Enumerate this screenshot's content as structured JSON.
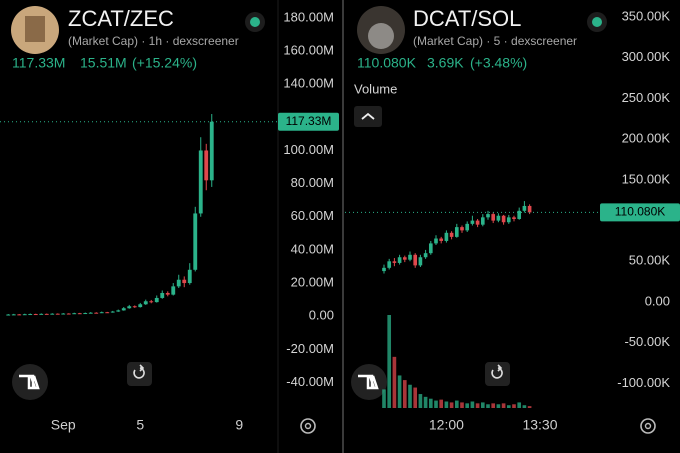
{
  "chart_data": [
    {
      "type": "candlestick",
      "title": "ZCAT/ZEC",
      "subtitle": "(Market Cap) · 1h · dexscreener",
      "stats": [
        "117.33M",
        "15.51M",
        "(+15.24%)"
      ],
      "up_color": "#2bb38a",
      "down_color": "#e0474c",
      "ylim": [
        -55.4,
        190.8
      ],
      "yticks": [
        {
          "value": 180,
          "label": "180.00M"
        },
        {
          "value": 160,
          "label": "160.00M"
        },
        {
          "value": 140,
          "label": "140.00M"
        },
        {
          "value": 100,
          "label": "100.00M"
        },
        {
          "value": 80,
          "label": "80.00M"
        },
        {
          "value": 60,
          "label": "60.00M"
        },
        {
          "value": 40,
          "label": "40.00M"
        },
        {
          "value": 20,
          "label": "20.00M"
        },
        {
          "value": 0,
          "label": "0.00"
        },
        {
          "value": -20,
          "label": "-20.00M"
        },
        {
          "value": -40,
          "label": "-40.00M"
        }
      ],
      "price_label": {
        "value": 117.33,
        "label": "117.33M"
      },
      "categories": [
        null,
        null,
        null,
        null,
        null,
        null,
        null,
        null,
        null,
        null,
        null,
        "Sep",
        null,
        null,
        null,
        null,
        null,
        null,
        null,
        null,
        null,
        null,
        null,
        null,
        null,
        "5",
        null,
        null,
        null,
        null,
        null,
        null,
        null,
        null,
        null,
        null,
        null,
        null,
        null,
        null,
        null,
        null,
        null,
        "9",
        null,
        null,
        null,
        null,
        null,
        null
      ],
      "open": [
        null,
        0.9,
        1.0,
        1.1,
        1.0,
        1.2,
        1.3,
        1.2,
        1.4,
        1.3,
        1.5,
        1.4,
        1.6,
        1.5,
        1.8,
        1.7,
        1.9,
        2.1,
        2.0,
        2.4,
        2.2,
        2.8,
        3.5,
        4.8,
        6.0,
        5.5,
        7.2,
        9.0,
        8.5,
        11.0,
        14.0,
        13.0,
        18.0,
        22.0,
        20.0,
        28.0,
        62.0,
        100.0,
        82.0,
        null,
        null,
        null,
        null,
        null,
        null,
        null,
        null,
        null,
        null,
        null
      ],
      "high": [
        null,
        1.3,
        1.4,
        1.3,
        1.5,
        1.6,
        1.5,
        1.7,
        1.6,
        1.8,
        1.7,
        1.9,
        1.8,
        2.1,
        2.0,
        2.2,
        2.5,
        2.4,
        2.8,
        2.6,
        3.2,
        4.0,
        5.5,
        6.8,
        6.5,
        8.0,
        10.0,
        9.8,
        12.5,
        15.5,
        15.0,
        20.0,
        25.0,
        24.0,
        32.0,
        66.0,
        108.0,
        104.0,
        122.0,
        null,
        null,
        null,
        null,
        null,
        null,
        null,
        null,
        null,
        null,
        null
      ],
      "low": [
        null,
        0.7,
        0.8,
        0.8,
        0.9,
        1.0,
        1.0,
        1.1,
        1.1,
        1.2,
        1.2,
        1.3,
        1.3,
        1.4,
        1.5,
        1.6,
        1.8,
        1.8,
        1.9,
        2.0,
        2.1,
        2.6,
        3.3,
        4.5,
        5.0,
        5.2,
        6.8,
        7.8,
        8.2,
        10.5,
        12.0,
        12.5,
        17.0,
        17.5,
        19.0,
        27.0,
        60.0,
        76.0,
        78.0,
        null,
        null,
        null,
        null,
        null,
        null,
        null,
        null,
        null,
        null,
        null
      ],
      "close": [
        null,
        1.0,
        1.1,
        1.0,
        1.2,
        1.3,
        1.2,
        1.4,
        1.3,
        1.5,
        1.4,
        1.6,
        1.5,
        1.8,
        1.7,
        1.9,
        2.1,
        2.0,
        2.4,
        2.2,
        2.8,
        3.5,
        4.8,
        6.0,
        5.5,
        7.2,
        9.0,
        8.5,
        11.0,
        14.0,
        13.0,
        18.0,
        22.0,
        20.0,
        28.0,
        62.0,
        100.0,
        82.0,
        117.33,
        null,
        null,
        null,
        null,
        null,
        null,
        null,
        null,
        null,
        null,
        null
      ]
    },
    {
      "type": "candlestick",
      "title": "DCAT/SOL",
      "subtitle": "(Market Cap) · 5 · dexscreener",
      "stats": [
        "110.080K",
        "3.69K",
        "(+3.48%)"
      ],
      "volume_label": "Volume",
      "up_color": "#2bb38a",
      "down_color": "#e0474c",
      "ylim": [
        -130.2,
        371
      ],
      "yticks": [
        {
          "value": 350,
          "label": "350.00K"
        },
        {
          "value": 300,
          "label": "300.00K"
        },
        {
          "value": 250,
          "label": "250.00K"
        },
        {
          "value": 200,
          "label": "200.00K"
        },
        {
          "value": 150,
          "label": "150.00K"
        },
        {
          "value": 50,
          "label": "50.00K"
        },
        {
          "value": 0,
          "label": "0.00"
        },
        {
          "value": -50,
          "label": "-50.00K"
        },
        {
          "value": -100,
          "label": "-100.00K"
        }
      ],
      "price_label": {
        "value": 110.08,
        "label": "110.080K"
      },
      "categories": [
        null,
        null,
        null,
        null,
        null,
        null,
        null,
        null,
        null,
        null,
        null,
        null,
        null,
        null,
        null,
        null,
        null,
        null,
        null,
        "12:00",
        null,
        null,
        null,
        null,
        null,
        null,
        null,
        null,
        null,
        null,
        null,
        null,
        null,
        null,
        null,
        null,
        null,
        "13:30",
        null,
        null,
        null,
        null,
        null,
        null,
        null,
        null,
        null,
        null,
        null
      ],
      "open": [
        null,
        null,
        null,
        null,
        null,
        null,
        null,
        38,
        42,
        50,
        48,
        55,
        52,
        58,
        45,
        55,
        60,
        72,
        78,
        75,
        85,
        80,
        92,
        88,
        96,
        100,
        95,
        104,
        108,
        100,
        106,
        98,
        104,
        102,
        112,
        118,
        null,
        null,
        null,
        null,
        null,
        null,
        null,
        null,
        null,
        null,
        null,
        null,
        null
      ],
      "high": [
        null,
        null,
        null,
        null,
        null,
        null,
        null,
        46,
        53,
        54,
        58,
        57,
        62,
        60,
        58,
        64,
        75,
        82,
        80,
        88,
        87,
        96,
        94,
        99,
        106,
        102,
        108,
        112,
        110,
        109,
        107,
        107,
        106,
        116,
        124,
        120,
        null,
        null,
        null,
        null,
        null,
        null,
        null,
        null,
        null,
        null,
        null,
        null,
        null
      ],
      "low": [
        null,
        null,
        null,
        null,
        null,
        null,
        null,
        35,
        40,
        44,
        46,
        49,
        50,
        42,
        43,
        53,
        58,
        70,
        72,
        73,
        77,
        79,
        85,
        86,
        94,
        92,
        93,
        101,
        97,
        98,
        95,
        96,
        99,
        101,
        110,
        108,
        null,
        null,
        null,
        null,
        null,
        null,
        null,
        null,
        null,
        null,
        null,
        null,
        null
      ],
      "close": [
        null,
        null,
        null,
        null,
        null,
        null,
        null,
        42,
        50,
        48,
        55,
        52,
        58,
        45,
        55,
        60,
        72,
        78,
        75,
        85,
        80,
        92,
        88,
        96,
        100,
        95,
        104,
        108,
        100,
        106,
        98,
        104,
        102,
        112,
        118,
        110.08,
        null,
        null,
        null,
        null,
        null,
        null,
        null,
        null,
        null,
        null,
        null,
        null,
        null
      ],
      "volume": [
        null,
        null,
        null,
        null,
        null,
        null,
        null,
        20,
        100,
        55,
        35,
        30,
        25,
        22,
        15,
        12,
        10,
        8,
        9,
        7,
        6,
        8,
        6,
        5,
        7,
        5,
        6,
        4,
        5,
        4,
        5,
        3,
        4,
        6,
        3,
        2,
        null,
        null,
        null,
        null,
        null,
        null,
        null,
        null,
        null,
        null,
        null,
        null,
        null
      ]
    }
  ]
}
